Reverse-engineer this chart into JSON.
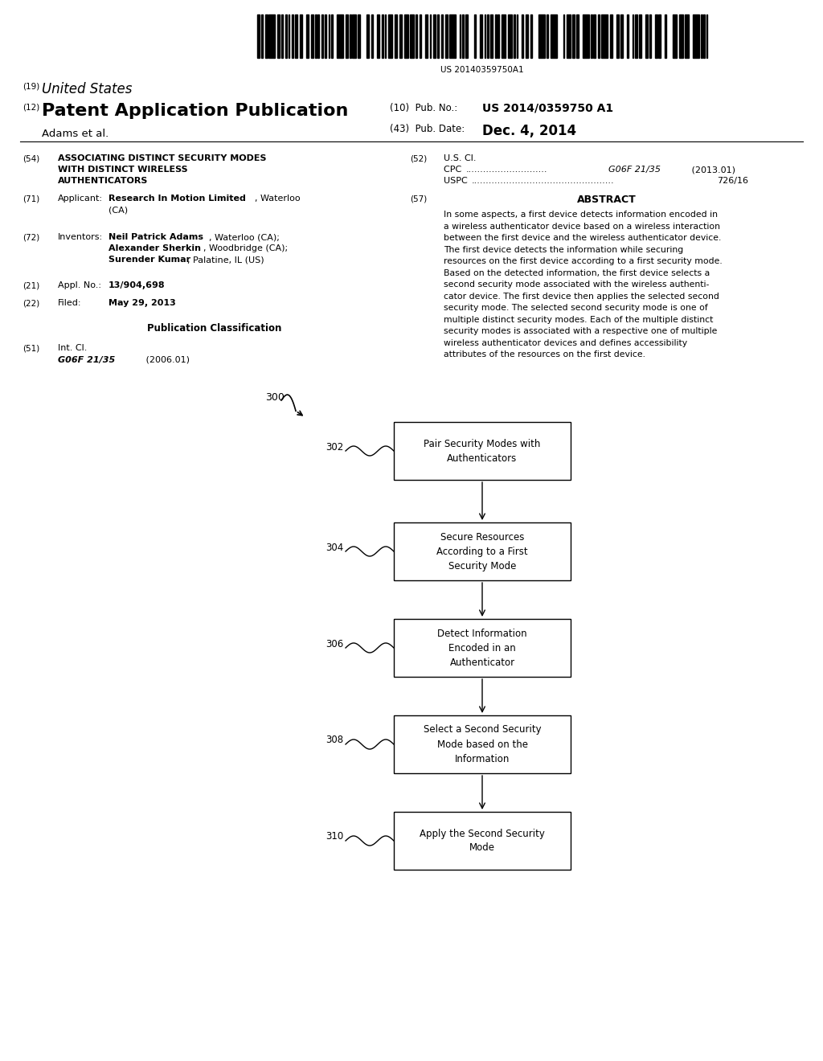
{
  "bg_color": "#ffffff",
  "barcode_text": "US 20140359750A1",
  "fig_w": 10.24,
  "fig_h": 13.2,
  "dpi": 100,
  "boxes": [
    {
      "id": "302",
      "label": "Pair Security Modes with\nAuthenticators"
    },
    {
      "id": "304",
      "label": "Secure Resources\nAccording to a First\nSecurity Mode"
    },
    {
      "id": "306",
      "label": "Detect Information\nEncoded in an\nAuthenticator"
    },
    {
      "id": "308",
      "label": "Select a Second Security\nMode based on the\nInformation"
    },
    {
      "id": "310",
      "label": "Apply the Second Security\nMode"
    }
  ],
  "abstract": "In some aspects, a first device detects information encoded in a wireless authenticator device based on a wireless interaction between the first device and the wireless authenticator device. The first device detects the information while securing resources on the first device according to a first security mode. Based on the detected information, the first device selects a second security mode associated with the wireless authenti-cator device. The first device then applies the selected second security mode. The selected second security mode is one of multiple distinct security modes. Each of the multiple distinct security modes is associated with a respective one of multiple wireless authenticator devices and defines accessibility attributes of the resources on the first device."
}
